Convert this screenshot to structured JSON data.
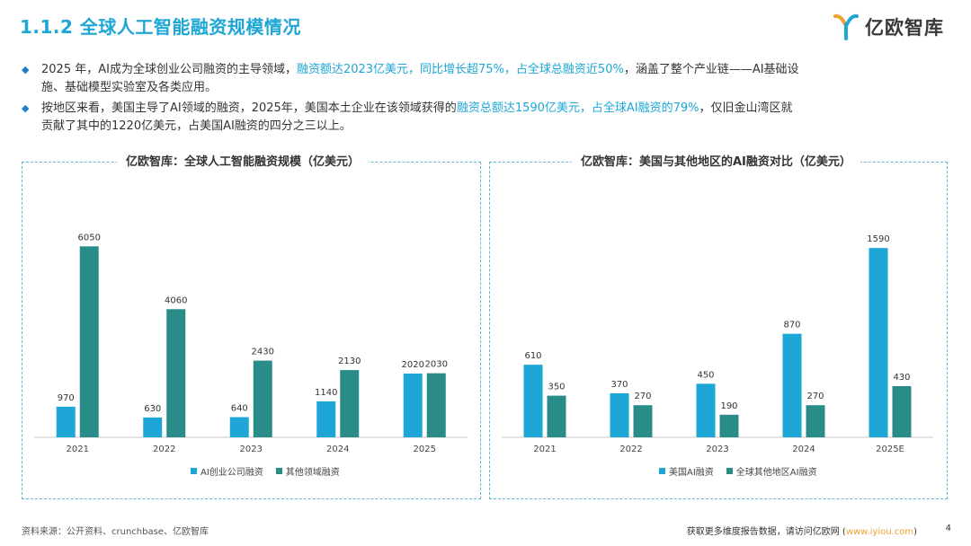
{
  "page_title": "1.1.2 全球人工智能融资规模情况",
  "logo": {
    "text": "亿欧智库",
    "icon": "yiou-logo-icon"
  },
  "bullets": [
    {
      "icon": "diamond-bullet-icon",
      "text_before": "2025 年，AI成为全球创业公司融资的主导领域，",
      "highlight": "融资额达2023亿美元，同比增长超75%，占全球总融资近50%",
      "text_after_line1": "，涵盖了整个产业链——AI基础设",
      "text_line2": "施、基础模型实验室及各类应用。"
    },
    {
      "icon": "diamond-bullet-icon",
      "text_before": "按地区来看，美国主导了AI领域的融资，2025年，美国本土企业在该领域获得的",
      "highlight": "融资总额达1590亿美元，占全球AI融资的79%",
      "text_after_line1": "，仅旧金山湾区就",
      "text_line2": "贡献了其中的1220亿美元，占美国AI融资的四分之三以上。"
    }
  ],
  "chart_data": [
    {
      "type": "bar",
      "title": "亿欧智库：全球人工智能融资规模（亿美元）",
      "categories": [
        "2021",
        "2022",
        "2023",
        "2024",
        "2025"
      ],
      "series": [
        {
          "name": "AI创业公司融资",
          "values": [
            970,
            630,
            640,
            1140,
            2020
          ],
          "color": "#1ea7d6"
        },
        {
          "name": "其他领域融资",
          "values": [
            6050,
            4060,
            2430,
            2130,
            2030
          ],
          "color": "#2a8c88"
        }
      ],
      "ylim": [
        0,
        6600
      ],
      "grid": false,
      "legend": "bottom"
    },
    {
      "type": "bar",
      "title": "亿欧智库：美国与其他地区的AI融资对比（亿美元）",
      "categories": [
        "2021",
        "2022",
        "2023",
        "2024",
        "2025E"
      ],
      "series": [
        {
          "name": "美国AI融资",
          "values": [
            610,
            370,
            450,
            870,
            1590
          ],
          "color": "#1ea7d6"
        },
        {
          "name": "全球其他地区AI融资",
          "values": [
            350,
            270,
            190,
            270,
            430
          ],
          "color": "#2a8c88"
        }
      ],
      "ylim": [
        0,
        1750
      ],
      "grid": false,
      "legend": "bottom"
    }
  ],
  "footer": {
    "source": "资料来源：公开资料、crunchbase、亿欧智库",
    "more_text": "获取更多维度报告数据，请访问亿欧网 (",
    "link_text": "www.iyiou.com",
    "more_close": ")",
    "page_number": "4"
  }
}
